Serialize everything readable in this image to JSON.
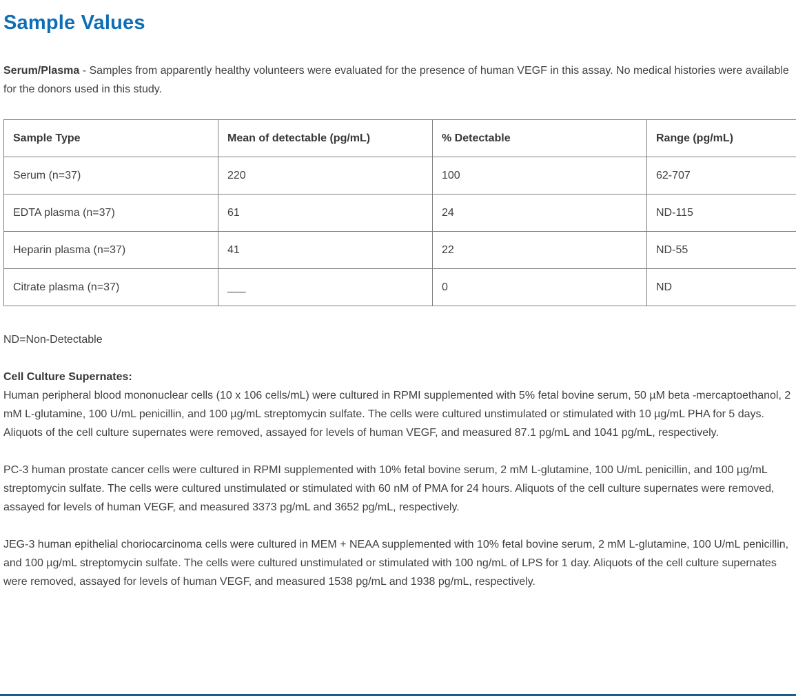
{
  "page": {
    "title": "Sample Values",
    "accent_color": "#0e6eb5",
    "divider_color": "#175d8d"
  },
  "intro": {
    "label": "Serum/Plasma",
    "text": " - Samples from apparently healthy volunteers were evaluated for the presence of human VEGF in this assay. No medical histories were available for the donors used in this study."
  },
  "table": {
    "headers": [
      "Sample Type",
      "Mean of detectable (pg/mL)",
      "% Detectable",
      "Range (pg/mL)"
    ],
    "rows": [
      {
        "sample_type": "Serum (n=37)",
        "mean": "220",
        "percent_detectable": "100",
        "range": "62-707"
      },
      {
        "sample_type": "EDTA plasma (n=37)",
        "mean": "61",
        "percent_detectable": "24",
        "range": "ND-115"
      },
      {
        "sample_type": "Heparin plasma (n=37)",
        "mean": "41",
        "percent_detectable": "22",
        "range": "ND-55"
      },
      {
        "sample_type": "Citrate plasma (n=37)",
        "mean": "___",
        "percent_detectable": "0",
        "range": "ND"
      }
    ],
    "footnote": "ND=Non-Detectable"
  },
  "cell_culture": {
    "heading": "Cell Culture Supernates:",
    "paragraphs": [
      "Human peripheral blood mononuclear cells (10 x 106 cells/mL) were cultured in RPMI supplemented with 5% fetal bovine serum, 50 µM beta -mercaptoethanol, 2 mM L-glutamine, 100 U/mL penicillin, and 100 µg/mL streptomycin sulfate. The cells were cultured unstimulated or stimulated with 10 µg/mL PHA for 5 days. Aliquots of the cell culture supernates were removed, assayed for levels of human VEGF, and measured 87.1 pg/mL and 1041 pg/mL, respectively.",
      "PC-3 human prostate cancer cells were cultured in RPMI supplemented with 10% fetal bovine serum, 2 mM L-glutamine, 100 U/mL penicillin, and 100 µg/mL streptomycin sulfate. The cells were cultured unstimulated or stimulated with 60 nM of PMA for 24 hours. Aliquots of the cell culture supernates were removed, assayed for levels of human VEGF, and measured 3373 pg/mL and 3652 pg/mL, respectively.",
      "JEG-3 human epithelial choriocarcinoma cells were cultured in MEM + NEAA supplemented with 10% fetal bovine serum, 2 mM L-glutamine, 100 U/mL penicillin, and 100 µg/mL streptomycin sulfate. The cells were cultured unstimulated or stimulated with 100 ng/mL of LPS for 1 day. Aliquots of the cell culture supernates were removed, assayed for levels of human VEGF, and measured 1538 pg/mL and 1938 pg/mL, respectively."
    ]
  }
}
